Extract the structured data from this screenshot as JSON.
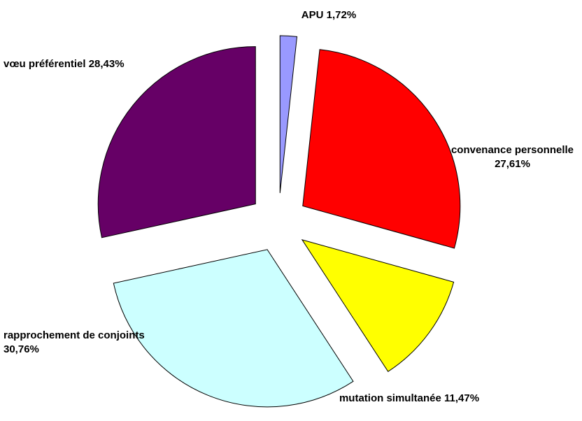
{
  "chart_data": {
    "type": "pie",
    "categories": [
      "APU",
      "convenance personnelle",
      "mutation simultanée",
      "rapprochement de conjoints",
      "vœu préférentiel"
    ],
    "values": [
      1.72,
      27.61,
      11.47,
      30.76,
      28.43
    ],
    "value_labels": [
      "1,72%",
      "27,61%",
      "11,47%",
      "30,76%",
      "28,43%"
    ],
    "colors": [
      "#9999ff",
      "#ff0000",
      "#ffff00",
      "#ccffff",
      "#660066"
    ]
  }
}
